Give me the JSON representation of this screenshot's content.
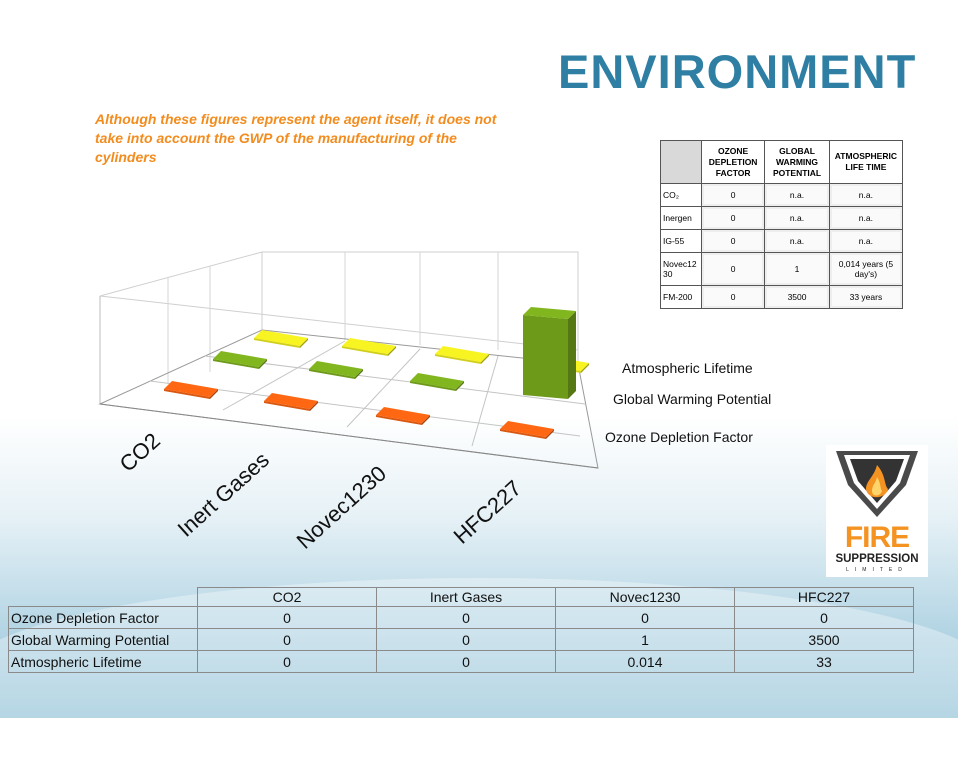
{
  "title": "ENVIRONMENT",
  "note": "Although these figures represent the agent itself, it does not take into account the GWP of the manufacturing of the cylinders",
  "reference_table": {
    "headers": [
      "",
      "OZONE DEPLETION FACTOR",
      "GLOBAL WARMING POTENTIAL",
      "ATMOSPHERIC LIFE TIME"
    ],
    "rows": [
      [
        "CO₂",
        "0",
        "n.a.",
        "n.a."
      ],
      [
        "Inergen",
        "0",
        "n.a.",
        "n.a."
      ],
      [
        "IG-55",
        "0",
        "n.a.",
        "n.a."
      ],
      [
        "Novec1230",
        "0",
        "1",
        "0,014 years (5 day's)"
      ],
      [
        "FM-200",
        "0",
        "3500",
        "33 years"
      ]
    ]
  },
  "chart_data": {
    "type": "bar",
    "variant": "3d-column",
    "categories": [
      "CO2",
      "Inert Gases",
      "Novec1230",
      "HFC227"
    ],
    "series": [
      {
        "name": "Ozone Depletion Factor",
        "values": [
          0,
          0,
          0,
          0
        ],
        "color": "#d9570f"
      },
      {
        "name": "Global Warming Potential",
        "values": [
          0,
          0,
          1,
          3500
        ],
        "color": "#6e9a1a"
      },
      {
        "name": "Atmospheric Lifetime",
        "values": [
          0,
          0,
          0.014,
          33
        ],
        "color": "#d2cf1c"
      }
    ],
    "grid": true,
    "legend": "series labels along depth axis (right)"
  },
  "data_table": {
    "columns": [
      "CO2",
      "Inert Gases",
      "Novec1230",
      "HFC227"
    ],
    "rows": [
      {
        "label": "Ozone Depletion Factor",
        "values": [
          "0",
          "0",
          "0",
          "0"
        ]
      },
      {
        "label": "Global Warming Potential",
        "values": [
          "0",
          "0",
          "1",
          "3500"
        ]
      },
      {
        "label": "Atmospheric Lifetime",
        "values": [
          "0",
          "0",
          "0.014",
          "33"
        ]
      }
    ]
  },
  "logo": {
    "line1": "FIRE",
    "line2": "SUPPRESSION",
    "line3": "LIMITED"
  }
}
